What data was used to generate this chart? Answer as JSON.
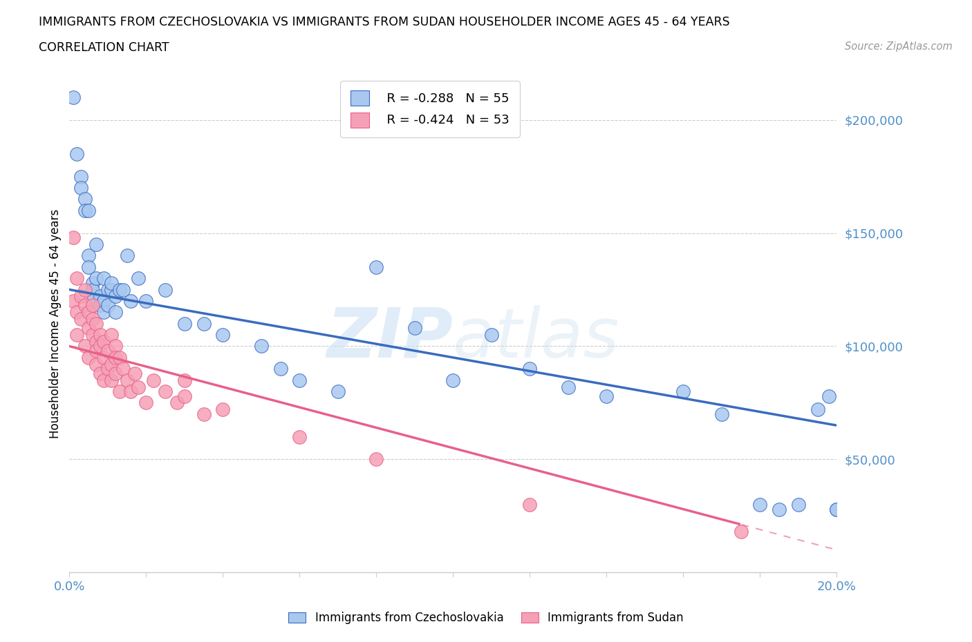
{
  "title_line1": "IMMIGRANTS FROM CZECHOSLOVAKIA VS IMMIGRANTS FROM SUDAN HOUSEHOLDER INCOME AGES 45 - 64 YEARS",
  "title_line2": "CORRELATION CHART",
  "source_text": "Source: ZipAtlas.com",
  "ylabel": "Householder Income Ages 45 - 64 years",
  "xlim": [
    0.0,
    0.2
  ],
  "ylim": [
    0,
    220000
  ],
  "yticks": [
    0,
    50000,
    100000,
    150000,
    200000
  ],
  "xticks": [
    0.0,
    0.02,
    0.04,
    0.06,
    0.08,
    0.1,
    0.12,
    0.14,
    0.16,
    0.18,
    0.2
  ],
  "watermark_zip": "ZIP",
  "watermark_atlas": "atlas",
  "legend_r1": "R = -0.288   N = 55",
  "legend_r2": "R = -0.424   N = 53",
  "legend_label1": "Immigrants from Czechoslovakia",
  "legend_label2": "Immigrants from Sudan",
  "color_czech": "#a8c8f0",
  "color_sudan": "#f5a0b5",
  "color_czech_line": "#3a6bbf",
  "color_sudan_line": "#e8608a",
  "color_axis_label": "#5090c8",
  "color_grid": "#cccccc",
  "czech_intercept": 125000,
  "czech_slope": -300000,
  "sudan_intercept": 100000,
  "sudan_slope": -450000,
  "czech_x": [
    0.001,
    0.002,
    0.003,
    0.003,
    0.004,
    0.004,
    0.005,
    0.005,
    0.005,
    0.006,
    0.006,
    0.006,
    0.007,
    0.007,
    0.008,
    0.008,
    0.009,
    0.009,
    0.009,
    0.01,
    0.01,
    0.011,
    0.011,
    0.012,
    0.012,
    0.013,
    0.014,
    0.015,
    0.016,
    0.018,
    0.02,
    0.025,
    0.03,
    0.035,
    0.04,
    0.05,
    0.055,
    0.06,
    0.07,
    0.08,
    0.09,
    0.1,
    0.11,
    0.12,
    0.13,
    0.14,
    0.16,
    0.17,
    0.18,
    0.185,
    0.19,
    0.195,
    0.198,
    0.2,
    0.2
  ],
  "czech_y": [
    210000,
    185000,
    175000,
    170000,
    165000,
    160000,
    140000,
    135000,
    160000,
    128000,
    125000,
    120000,
    130000,
    145000,
    122000,
    118000,
    130000,
    120000,
    115000,
    125000,
    118000,
    125000,
    128000,
    122000,
    115000,
    125000,
    125000,
    140000,
    120000,
    130000,
    120000,
    125000,
    110000,
    110000,
    105000,
    100000,
    90000,
    85000,
    80000,
    135000,
    108000,
    85000,
    105000,
    90000,
    82000,
    78000,
    80000,
    70000,
    30000,
    28000,
    30000,
    72000,
    78000,
    28000,
    28000
  ],
  "sudan_x": [
    0.001,
    0.001,
    0.002,
    0.002,
    0.002,
    0.003,
    0.003,
    0.004,
    0.004,
    0.004,
    0.005,
    0.005,
    0.005,
    0.006,
    0.006,
    0.006,
    0.007,
    0.007,
    0.007,
    0.007,
    0.008,
    0.008,
    0.008,
    0.009,
    0.009,
    0.009,
    0.01,
    0.01,
    0.011,
    0.011,
    0.011,
    0.012,
    0.012,
    0.012,
    0.013,
    0.013,
    0.014,
    0.015,
    0.016,
    0.017,
    0.018,
    0.02,
    0.022,
    0.025,
    0.028,
    0.03,
    0.03,
    0.035,
    0.04,
    0.06,
    0.08,
    0.12,
    0.175
  ],
  "sudan_y": [
    148000,
    120000,
    130000,
    115000,
    105000,
    122000,
    112000,
    125000,
    118000,
    100000,
    115000,
    108000,
    95000,
    118000,
    112000,
    105000,
    110000,
    102000,
    98000,
    92000,
    105000,
    100000,
    88000,
    102000,
    95000,
    85000,
    98000,
    90000,
    105000,
    92000,
    85000,
    100000,
    95000,
    88000,
    95000,
    80000,
    90000,
    85000,
    80000,
    88000,
    82000,
    75000,
    85000,
    80000,
    75000,
    85000,
    78000,
    70000,
    72000,
    60000,
    50000,
    30000,
    18000
  ]
}
